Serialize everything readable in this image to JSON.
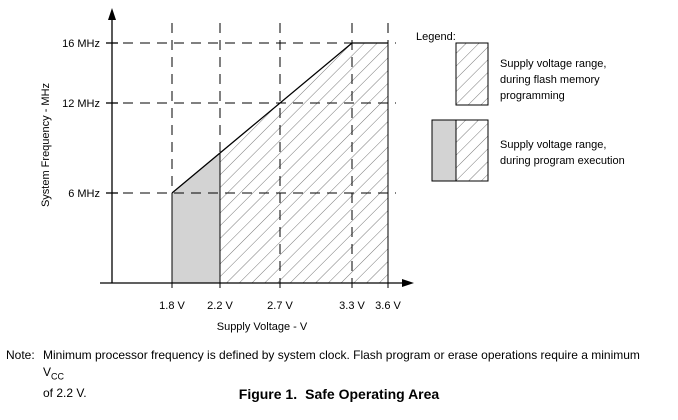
{
  "chart_data": {
    "type": "area",
    "xlabel": "Supply Voltage - V",
    "ylabel": "System Frequency - MHz",
    "x_ticks": [
      {
        "value": 1.8,
        "label": "1.8 V"
      },
      {
        "value": 2.2,
        "label": "2.2 V"
      },
      {
        "value": 2.7,
        "label": "2.7 V"
      },
      {
        "value": 3.3,
        "label": "3.3 V"
      },
      {
        "value": 3.6,
        "label": "3.6 V"
      }
    ],
    "y_ticks": [
      {
        "value": 6,
        "label": "6 MHz"
      },
      {
        "value": 12,
        "label": "12 MHz"
      },
      {
        "value": 16,
        "label": "16 MHz"
      }
    ],
    "xlim": [
      1.3,
      3.8
    ],
    "ylim": [
      0,
      18
    ],
    "boundary": [
      [
        1.8,
        6
      ],
      [
        3.3,
        16
      ],
      [
        3.6,
        16
      ]
    ],
    "series": [
      {
        "name": "Supply voltage range, during program execution",
        "x_range": [
          1.8,
          2.2
        ],
        "fill": "solid-gray",
        "color": "#d3d3d3"
      },
      {
        "name": "Supply voltage range, during flash memory programming",
        "x_range": [
          2.2,
          3.6
        ],
        "fill": "hatched",
        "color": "#7a7a7a"
      }
    ],
    "legend": {
      "title": "Legend:",
      "items": [
        {
          "line1": "Supply voltage range,",
          "line2": "during flash memory",
          "line3": "programming"
        },
        {
          "line1": "Supply voltage range,",
          "line2": "during program execution",
          "line3": ""
        }
      ],
      "placement": "top-right"
    },
    "grid": "dashed"
  },
  "note": {
    "label": "Note:",
    "text_before": "Minimum processor frequency is defined by system clock. Flash program or erase operations require a minimum V",
    "subscript": "CC",
    "text_after": "of 2.2 V."
  },
  "caption": {
    "label": "Figure 1.",
    "title": "Safe Operating Area"
  }
}
